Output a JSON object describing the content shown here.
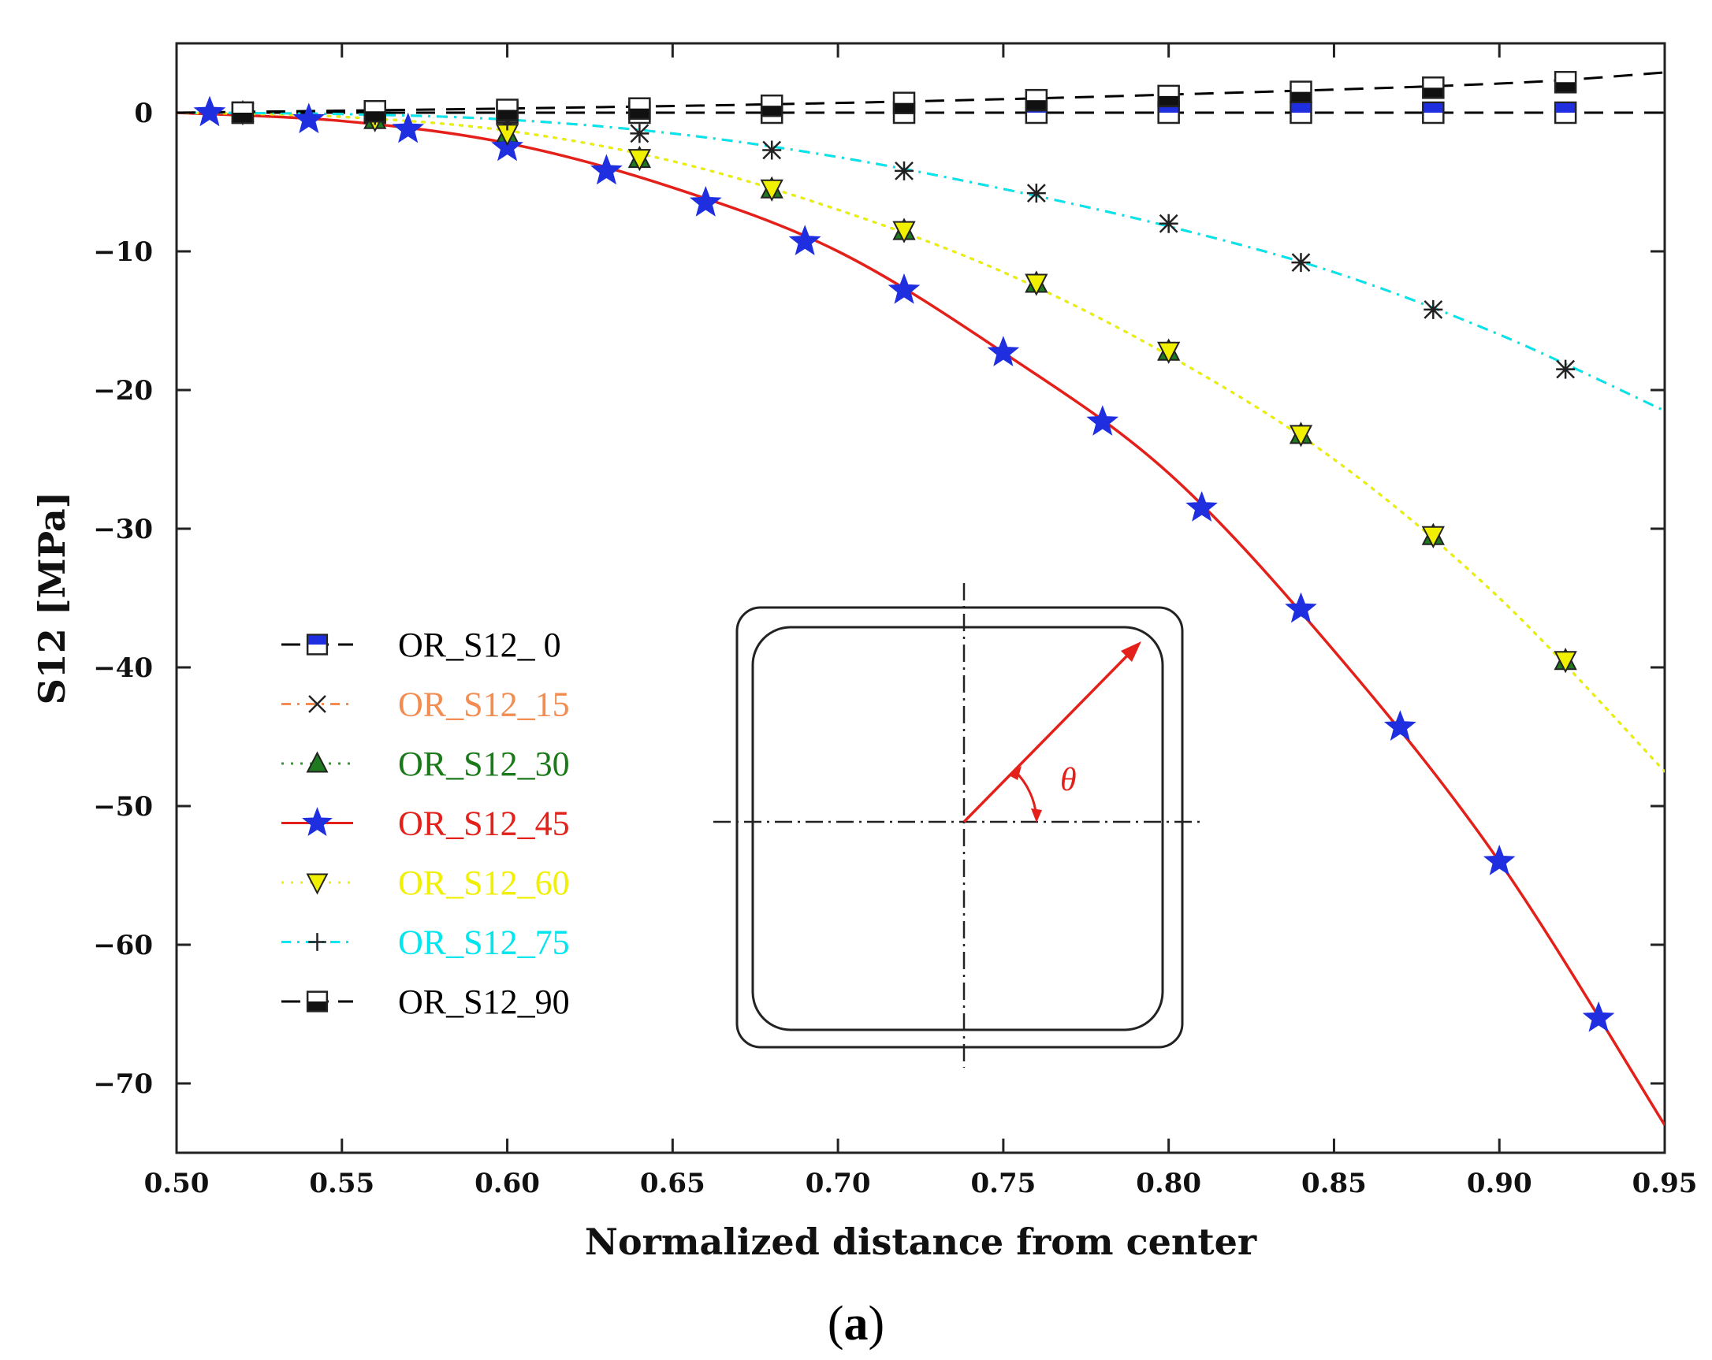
{
  "caption": {
    "open": "(",
    "letter": "a",
    "close": ")"
  },
  "chart_data": {
    "type": "line",
    "xlabel": "Normalized distance from center",
    "ylabel": "S12 [MPa]",
    "xlim": [
      0.5,
      0.95
    ],
    "ylim": [
      -75,
      5
    ],
    "xticks": [
      "0.50",
      "0.55",
      "0.60",
      "0.65",
      "0.70",
      "0.75",
      "0.80",
      "0.85",
      "0.90",
      "0.95"
    ],
    "xtick_values": [
      0.5,
      0.55,
      0.6,
      0.65,
      0.7,
      0.75,
      0.8,
      0.85,
      0.9,
      0.95
    ],
    "yticks": [
      "0",
      "−10",
      "−20",
      "−30",
      "−40",
      "−50",
      "−60",
      "−70"
    ],
    "ytick_values": [
      0,
      -10,
      -20,
      -30,
      -40,
      -50,
      -60,
      -70
    ],
    "grid": false,
    "legend_position": "left",
    "inset": {
      "description_symbol": "θ",
      "angle_deg": 45
    },
    "series": [
      {
        "name": "OR_S12_ 0",
        "color": "#000000",
        "text_color": "#000000",
        "marker": "square-blue",
        "line_style": "dashed",
        "line": {
          "x": [
            0.5,
            0.95
          ],
          "y": [
            0,
            0
          ]
        },
        "points": {
          "x": [
            0.52,
            0.56,
            0.6,
            0.64,
            0.68,
            0.72,
            0.76,
            0.8,
            0.84,
            0.88,
            0.92
          ],
          "y": [
            0,
            0,
            0,
            0,
            0,
            0,
            0,
            0,
            0,
            0,
            0
          ]
        }
      },
      {
        "name": "OR_S12_15",
        "color": "#f28c50",
        "text_color": "#f28c50",
        "marker": "x",
        "line_style": "dashdot",
        "line": {
          "x": [
            0.5,
            0.55,
            0.6,
            0.65,
            0.7,
            0.75,
            0.8,
            0.85,
            0.9,
            0.95
          ],
          "y": [
            0,
            -0.1,
            -0.5,
            -1.5,
            -3.2,
            -5.5,
            -8.2,
            -11.5,
            -16,
            -21.5
          ]
        },
        "points": {
          "x": [
            0.52,
            0.56,
            0.6,
            0.64,
            0.68,
            0.72,
            0.76,
            0.8,
            0.84,
            0.88,
            0.92
          ],
          "y": [
            0,
            -0.2,
            -0.6,
            -1.5,
            -2.7,
            -4.2,
            -5.8,
            -8.0,
            -10.8,
            -14.2,
            -18.5
          ]
        }
      },
      {
        "name": "OR_S12_30",
        "color": "#2aa02a",
        "text_color": "#1a7a1a",
        "marker": "triangle-up-green",
        "line_style": "dotted",
        "line": {
          "x": [
            0.5,
            0.55,
            0.6,
            0.65,
            0.7,
            0.75,
            0.8,
            0.85,
            0.9,
            0.95
          ],
          "y": [
            0,
            -0.3,
            -1.3,
            -3.5,
            -7,
            -11.5,
            -17.5,
            -25,
            -35,
            -47.5
          ]
        },
        "points": {
          "x": [
            0.52,
            0.56,
            0.6,
            0.64,
            0.68,
            0.72,
            0.76,
            0.8,
            0.84,
            0.88,
            0.92
          ],
          "y": [
            0,
            -0.5,
            -1.5,
            -3.3,
            -5.5,
            -8.5,
            -12.3,
            -17.2,
            -23.2,
            -30.5,
            -39.5
          ]
        }
      },
      {
        "name": "OR_S12_45",
        "color": "#e32019",
        "text_color": "#e32019",
        "marker": "star-blue",
        "line_style": "solid",
        "line": {
          "x": [
            0.5,
            0.55,
            0.6,
            0.65,
            0.7,
            0.75,
            0.8,
            0.85,
            0.9,
            0.95
          ],
          "y": [
            0,
            -0.6,
            -2.2,
            -5.4,
            -10,
            -17.3,
            -26,
            -38.8,
            -54,
            -73
          ]
        },
        "points": {
          "x": [
            0.51,
            0.54,
            0.57,
            0.6,
            0.63,
            0.66,
            0.69,
            0.72,
            0.75,
            0.78,
            0.81,
            0.84,
            0.87,
            0.9,
            0.93
          ],
          "y": [
            0,
            -0.5,
            -1.2,
            -2.5,
            -4.2,
            -6.5,
            -9.3,
            -12.8,
            -17.3,
            -22.3,
            -28.5,
            -35.8,
            -44.3,
            -54.0,
            -65.3
          ]
        }
      },
      {
        "name": "OR_S12_60",
        "color": "#f0f000",
        "text_color": "#f0f000",
        "marker": "triangle-down-yellow",
        "line_style": "dotted",
        "line": {
          "x": [
            0.5,
            0.55,
            0.6,
            0.65,
            0.7,
            0.75,
            0.8,
            0.85,
            0.9,
            0.95
          ],
          "y": [
            0,
            -0.3,
            -1.3,
            -3.5,
            -7,
            -11.5,
            -17.5,
            -25,
            -35,
            -47.5
          ]
        },
        "points": {
          "x": [
            0.52,
            0.56,
            0.6,
            0.64,
            0.68,
            0.72,
            0.76,
            0.8,
            0.84,
            0.88,
            0.92
          ],
          "y": [
            0,
            -0.5,
            -1.5,
            -3.3,
            -5.5,
            -8.5,
            -12.3,
            -17.2,
            -23.2,
            -30.5,
            -39.5
          ]
        }
      },
      {
        "name": "OR_S12_75",
        "color": "#00e5ee",
        "text_color": "#00e5ee",
        "marker": "plus",
        "line_style": "dashdot",
        "line": {
          "x": [
            0.5,
            0.55,
            0.6,
            0.65,
            0.7,
            0.75,
            0.8,
            0.85,
            0.9,
            0.95
          ],
          "y": [
            0,
            -0.1,
            -0.5,
            -1.5,
            -3.2,
            -5.5,
            -8.2,
            -11.5,
            -16,
            -21.5
          ]
        },
        "points": {
          "x": [
            0.52,
            0.56,
            0.6,
            0.64,
            0.68,
            0.72,
            0.76,
            0.8,
            0.84,
            0.88,
            0.92
          ],
          "y": [
            0,
            -0.2,
            -0.6,
            -1.5,
            -2.7,
            -4.2,
            -5.8,
            -8.0,
            -10.8,
            -14.2,
            -18.5
          ]
        }
      },
      {
        "name": "OR_S12_90",
        "color": "#000000",
        "text_color": "#000000",
        "marker": "square-half-black",
        "line_style": "dashed",
        "line": {
          "x": [
            0.5,
            0.6,
            0.7,
            0.8,
            0.9,
            0.95
          ],
          "y": [
            0,
            0.3,
            0.7,
            1.3,
            2.1,
            2.9
          ]
        },
        "points": {
          "x": [
            0.52,
            0.56,
            0.6,
            0.64,
            0.68,
            0.72,
            0.76,
            0.8,
            0.84,
            0.88,
            0.92
          ],
          "y": [
            0,
            0.1,
            0.2,
            0.3,
            0.5,
            0.7,
            0.9,
            1.2,
            1.5,
            1.8,
            2.2
          ]
        }
      }
    ]
  }
}
